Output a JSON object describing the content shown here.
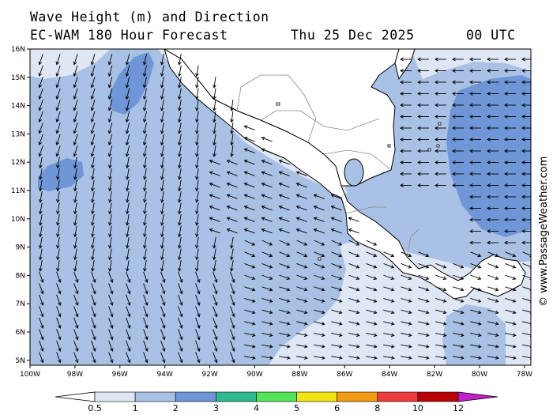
{
  "header": {
    "line1": "Wave Height (m) and Direction",
    "model": "EC-WAM 180 Hour Forecast",
    "date": "Thu 25 Dec 2025",
    "time": "00 UTC"
  },
  "credit": "© www.PassageWeather.com",
  "lat_labels": [
    "16N",
    "15N",
    "14N",
    "13N",
    "12N",
    "11N",
    "10N",
    "9N",
    "8N",
    "7N",
    "6N",
    "5N"
  ],
  "lon_labels": [
    "100W",
    "98W",
    "96W",
    "94W",
    "92W",
    "90W",
    "88W",
    "86W",
    "84W",
    "82W",
    "80W",
    "78W"
  ],
  "colorbar": {
    "colors": [
      "#ffffff",
      "#dfe7f5",
      "#a9c1e5",
      "#6f96d6",
      "#2fb98e",
      "#55e35a",
      "#f2e515",
      "#f39a12",
      "#ec3b3b",
      "#b90007",
      "#c21fc8"
    ],
    "labels": [
      "0.5",
      "1",
      "2",
      "3",
      "4",
      "5",
      "6",
      "8",
      "10",
      "12"
    ]
  },
  "palette": {
    "water_low": "#dfe7f5",
    "water_mid": "#a9c1e5",
    "water_high": "#6f96d6",
    "land": "#ffffff"
  }
}
